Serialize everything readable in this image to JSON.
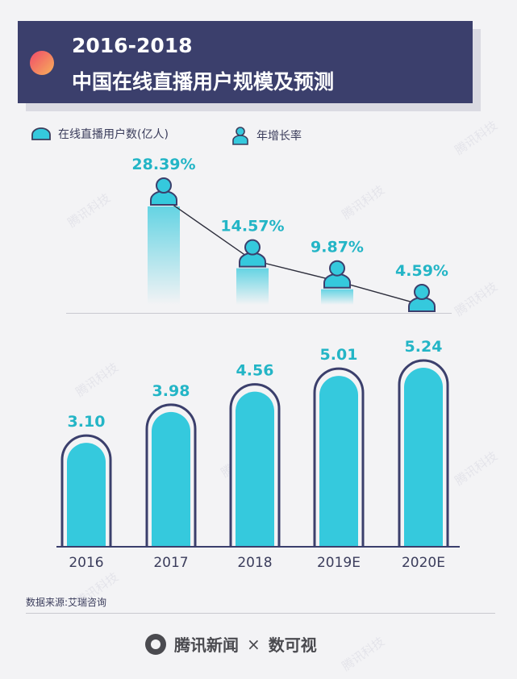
{
  "title": {
    "line1": "2016-2018",
    "line2": "中国在线直播用户规模及预测"
  },
  "legend": {
    "users_label": "在线直播用户数(亿人)",
    "growth_label": "年增长率"
  },
  "source": "数据来源:艾瑞咨询",
  "footer": {
    "brand": "腾讯新闻",
    "times": "×",
    "partner": "数可视"
  },
  "watermark": "腾讯科技",
  "colors": {
    "accent": "#35c9dd",
    "navy": "#3b3f6c",
    "label": "#23b5c6"
  },
  "chart_data": [
    {
      "type": "line",
      "series": [
        {
          "name": "年增长率",
          "values": [
            28.39,
            14.57,
            9.87,
            4.59
          ]
        }
      ],
      "data_labels": [
        "28.39%",
        "14.57%",
        "9.87%",
        "4.59%"
      ],
      "unit": "%"
    },
    {
      "type": "bar",
      "categories": [
        "2016",
        "2017",
        "2018",
        "2019E",
        "2020E"
      ],
      "series": [
        {
          "name": "在线直播用户数(亿人)",
          "values": [
            3.1,
            3.98,
            4.56,
            5.01,
            5.24
          ]
        }
      ],
      "data_labels": [
        "3.10",
        "3.98",
        "4.56",
        "5.01",
        "5.24"
      ]
    }
  ]
}
